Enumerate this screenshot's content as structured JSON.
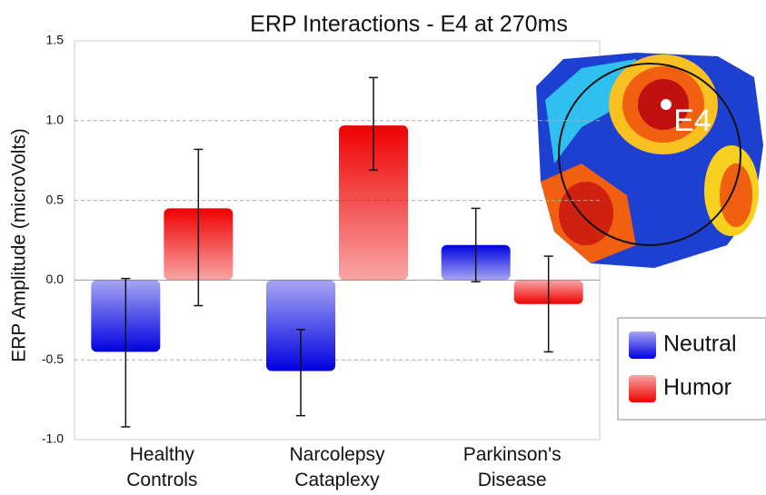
{
  "chart_data": {
    "type": "bar",
    "title": "ERP Interactions - E4 at 270ms",
    "y_label": "ERP Amplitude (microVolts)",
    "categories": [
      "Healthy Controls",
      "Narcolepsy Cataplexy",
      "Parkinson's Disease"
    ],
    "series": [
      {
        "name": "Neutral",
        "color": "#0000e0",
        "values": [
          -0.45,
          -0.57,
          0.22
        ],
        "err_minus": [
          0.47,
          0.28,
          0.23
        ],
        "err_plus": [
          0.46,
          0.26,
          0.23
        ]
      },
      {
        "name": "Humor",
        "color": "#ee0000",
        "values": [
          0.45,
          0.97,
          -0.15
        ],
        "err_minus": [
          0.61,
          0.28,
          0.3
        ],
        "err_plus": [
          0.37,
          0.3,
          0.3
        ]
      }
    ],
    "ylim": [
      -1.0,
      1.5
    ],
    "yticks": [
      {
        "value": -1.0,
        "label": "-1.0"
      },
      {
        "value": -0.5,
        "label": "-0.5"
      },
      {
        "value": 0,
        "label": "0.0"
      },
      {
        "value": 0.5,
        "label": "0.5"
      },
      {
        "value": 1.0,
        "label": "1.0"
      },
      {
        "value": 1.5,
        "label": "1.5"
      }
    ],
    "grid": true,
    "legend": "lower right",
    "map_label": "E4"
  }
}
